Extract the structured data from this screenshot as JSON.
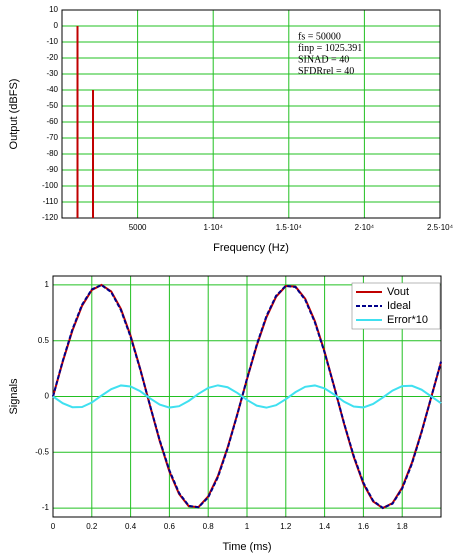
{
  "chart_data": [
    {
      "type": "bar",
      "xlabel": "Frequency (Hz)",
      "ylabel": "Output (dBFS)",
      "annotations": [
        "fs = 50000",
        "finp = 1025.391",
        "SINAD = 40",
        "SFDRrel = 40"
      ],
      "x": [
        1025.391,
        2050.782
      ],
      "values": [
        0,
        -40
      ],
      "color": "#c00000",
      "xlim": [
        0,
        25000
      ],
      "xticks": [
        5000,
        {
          "value": 10000,
          "label": "1·10⁴"
        },
        {
          "value": 15000,
          "label": "1.5·10⁴"
        },
        {
          "value": 20000,
          "label": "2·10⁴"
        },
        {
          "value": 25000,
          "label": "2.5·10⁴"
        }
      ],
      "ylim": [
        -120,
        10
      ],
      "yticks": [
        10,
        0,
        -10,
        -20,
        -30,
        -40,
        -50,
        -60,
        -70,
        -80,
        -90,
        -100,
        -110,
        -120
      ],
      "grid": true,
      "grid_color": "#22c022"
    },
    {
      "type": "line",
      "xlabel": "Time (ms)",
      "ylabel": "Signals",
      "x": [
        0,
        0.05,
        0.1,
        0.15,
        0.2,
        0.25,
        0.3,
        0.35,
        0.4,
        0.45,
        0.5,
        0.55,
        0.6,
        0.65,
        0.7,
        0.75,
        0.8,
        0.85,
        0.9,
        0.95,
        1,
        1.05,
        1.1,
        1.15,
        1.2,
        1.25,
        1.3,
        1.35,
        1.4,
        1.45,
        1.5,
        1.55,
        1.6,
        1.65,
        1.7,
        1.75,
        1.8,
        1.85,
        1.9,
        1.95,
        2
      ],
      "series": [
        {
          "name": "Vout",
          "color": "#c00000",
          "linestyle": "solid",
          "values": [
            0,
            0.311,
            0.591,
            0.814,
            0.955,
            1.0,
            0.942,
            0.785,
            0.544,
            0.245,
            -0.082,
            -0.398,
            -0.672,
            -0.874,
            -0.984,
            -0.991,
            -0.896,
            -0.713,
            -0.458,
            -0.159,
            0.156,
            0.455,
            0.71,
            0.895,
            0.99,
            0.985,
            0.876,
            0.675,
            0.401,
            0.085,
            -0.242,
            -0.541,
            -0.783,
            -0.941,
            -1.0,
            -0.956,
            -0.816,
            -0.594,
            -0.314,
            -0.004,
            0.307
          ]
        },
        {
          "name": "Ideal",
          "color": "#00008b",
          "linestyle": "dashed",
          "values": [
            0,
            0.317,
            0.601,
            0.823,
            0.96,
            0.999,
            0.935,
            0.775,
            0.535,
            0.24,
            -0.08,
            -0.391,
            -0.662,
            -0.865,
            -0.98,
            -0.993,
            -0.904,
            -0.723,
            -0.466,
            -0.162,
            0.159,
            0.463,
            0.72,
            0.903,
            0.992,
            0.981,
            0.867,
            0.665,
            0.394,
            0.083,
            -0.237,
            -0.532,
            -0.773,
            -0.934,
            -0.999,
            -0.961,
            -0.825,
            -0.604,
            -0.32,
            -0.004,
            0.313
          ]
        },
        {
          "name": "Error*10",
          "color": "#40e0f0",
          "linestyle": "solid",
          "values": [
            0,
            -0.06,
            -0.096,
            -0.094,
            -0.054,
            0.008,
            0.066,
            0.099,
            0.09,
            0.047,
            -0.016,
            -0.072,
            -0.099,
            -0.087,
            -0.039,
            0.024,
            0.077,
            0.1,
            0.083,
            0.032,
            -0.031,
            -0.082,
            -0.1,
            -0.078,
            -0.024,
            0.039,
            0.087,
            0.099,
            0.073,
            0.017,
            -0.046,
            -0.09,
            -0.098,
            -0.067,
            -0.009,
            0.053,
            0.093,
            0.096,
            0.061,
            0.001,
            -0.06
          ]
        }
      ],
      "xlim": [
        0,
        2
      ],
      "xticks": [
        0,
        0.2,
        0.4,
        0.6,
        0.8,
        1,
        1.2,
        1.4,
        1.6,
        1.8
      ],
      "ylim": [
        -1.08,
        1.08
      ],
      "yticks": [
        1,
        0.5,
        0,
        -0.5,
        -1
      ],
      "grid": true,
      "grid_color": "#22c022",
      "legend": "upper right"
    }
  ]
}
